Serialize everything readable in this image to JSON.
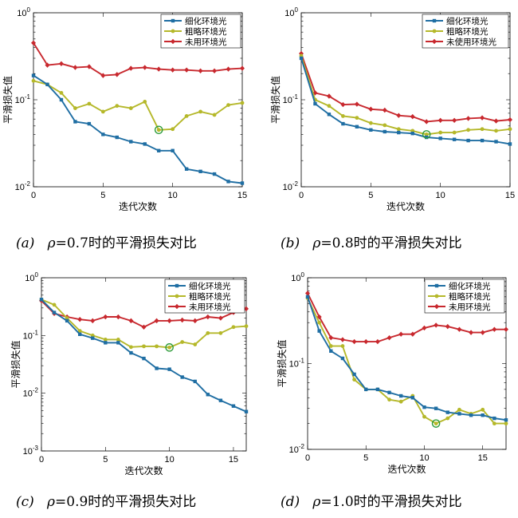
{
  "chart_data": [
    {
      "type": "line",
      "yscale": "log",
      "xlim": [
        0,
        15
      ],
      "ylim": [
        0.01,
        1
      ],
      "xticks": [
        0,
        5,
        10,
        15
      ],
      "xtick_labels": [
        "0",
        "5",
        "10",
        "15"
      ],
      "ytick_labels": [
        "10^-2",
        "10^-1",
        "10^0"
      ],
      "xlabel": "迭代次数",
      "ylabel": "平滑损失值",
      "legend_position": "top-right",
      "highlight": {
        "series": 1,
        "x": 9,
        "y": 0.045
      },
      "caption": {
        "tag": "(a)",
        "rho": "ρ",
        "rest": "=0.7时的平滑损失对比"
      },
      "series": [
        {
          "name": "细化环境光",
          "color": "#1f6ea3",
          "marker": "square",
          "x": [
            0,
            1,
            2,
            3,
            4,
            5,
            6,
            7,
            8,
            9,
            10,
            11,
            12,
            13,
            14,
            15
          ],
          "y": [
            0.19,
            0.15,
            0.1,
            0.056,
            0.053,
            0.04,
            0.037,
            0.033,
            0.031,
            0.026,
            0.026,
            0.016,
            0.015,
            0.014,
            0.0115,
            0.011
          ]
        },
        {
          "name": "粗略环境光",
          "color": "#b5b82a",
          "marker": "circle",
          "x": [
            0,
            1,
            2,
            3,
            4,
            5,
            6,
            7,
            8,
            9,
            10,
            11,
            12,
            13,
            14,
            15
          ],
          "y": [
            0.165,
            0.15,
            0.12,
            0.08,
            0.09,
            0.073,
            0.085,
            0.08,
            0.095,
            0.045,
            0.046,
            0.065,
            0.073,
            0.067,
            0.087,
            0.092
          ]
        },
        {
          "name": "未用环境光",
          "color": "#c8282e",
          "marker": "diamond",
          "x": [
            0,
            1,
            2,
            3,
            4,
            5,
            6,
            7,
            8,
            9,
            10,
            11,
            12,
            13,
            14,
            15
          ],
          "y": [
            0.45,
            0.25,
            0.26,
            0.235,
            0.24,
            0.19,
            0.195,
            0.23,
            0.235,
            0.225,
            0.22,
            0.22,
            0.215,
            0.215,
            0.225,
            0.23
          ]
        }
      ]
    },
    {
      "type": "line",
      "yscale": "log",
      "xlim": [
        0,
        15
      ],
      "ylim": [
        0.01,
        1
      ],
      "xticks": [
        0,
        5,
        10,
        15
      ],
      "xtick_labels": [
        "0",
        "5",
        "10",
        "15"
      ],
      "ytick_labels": [
        "10^-2",
        "10^-1",
        "10^0"
      ],
      "xlabel": "迭代次数",
      "ylabel": "平滑损失值",
      "legend_position": "top-right",
      "highlight": {
        "series": 1,
        "x": 9,
        "y": 0.04
      },
      "caption": {
        "tag": "(b)",
        "rho": "ρ",
        "rest": "=0.8时的平滑损失对比"
      },
      "series": [
        {
          "name": "细化环境光",
          "color": "#1f6ea3",
          "marker": "square",
          "x": [
            0,
            1,
            2,
            3,
            4,
            5,
            6,
            7,
            8,
            9,
            10,
            11,
            12,
            13,
            14,
            15
          ],
          "y": [
            0.3,
            0.09,
            0.068,
            0.053,
            0.049,
            0.045,
            0.043,
            0.042,
            0.041,
            0.037,
            0.036,
            0.035,
            0.034,
            0.034,
            0.033,
            0.031
          ]
        },
        {
          "name": "粗略环境光",
          "color": "#b5b82a",
          "marker": "circle",
          "x": [
            0,
            1,
            2,
            3,
            4,
            5,
            6,
            7,
            8,
            9,
            10,
            11,
            12,
            13,
            14,
            15
          ],
          "y": [
            0.32,
            0.1,
            0.085,
            0.065,
            0.062,
            0.054,
            0.051,
            0.046,
            0.044,
            0.04,
            0.042,
            0.042,
            0.045,
            0.046,
            0.044,
            0.046
          ]
        },
        {
          "name": "未使用环境光",
          "color": "#c8282e",
          "marker": "diamond",
          "x": [
            0,
            1,
            2,
            3,
            4,
            5,
            6,
            7,
            8,
            9,
            10,
            11,
            12,
            13,
            14,
            15
          ],
          "y": [
            0.34,
            0.12,
            0.11,
            0.088,
            0.089,
            0.078,
            0.076,
            0.066,
            0.064,
            0.056,
            0.058,
            0.058,
            0.061,
            0.062,
            0.057,
            0.059
          ]
        }
      ]
    },
    {
      "type": "line",
      "yscale": "log",
      "xlim": [
        0,
        16
      ],
      "ylim": [
        0.001,
        1
      ],
      "xticks": [
        0,
        5,
        10,
        15
      ],
      "xtick_labels": [
        "0",
        "5",
        "10",
        "15"
      ],
      "ytick_labels": [
        "10^-3",
        "10^-2",
        "10^-1",
        "10^0"
      ],
      "xlabel": "迭代次数",
      "ylabel": "平滑损失值",
      "legend_position": "top-right",
      "highlight": {
        "series": 1,
        "x": 10,
        "y": 0.062
      },
      "caption": {
        "tag": "(c)",
        "rho": "ρ",
        "rest": "=0.9时的平滑损失对比"
      },
      "series": [
        {
          "name": "细化环境光",
          "color": "#1f6ea3",
          "marker": "square",
          "x": [
            0,
            1,
            2,
            3,
            4,
            5,
            6,
            7,
            8,
            9,
            10,
            11,
            12,
            13,
            14,
            15,
            16
          ],
          "y": [
            0.42,
            0.25,
            0.18,
            0.105,
            0.09,
            0.075,
            0.075,
            0.05,
            0.04,
            0.027,
            0.026,
            0.019,
            0.016,
            0.0095,
            0.0075,
            0.006,
            0.0048
          ]
        },
        {
          "name": "粗略环境光",
          "color": "#b5b82a",
          "marker": "circle",
          "x": [
            0,
            1,
            2,
            3,
            4,
            5,
            6,
            7,
            8,
            9,
            10,
            11,
            12,
            13,
            14,
            15,
            16
          ],
          "y": [
            0.42,
            0.34,
            0.2,
            0.12,
            0.1,
            0.085,
            0.085,
            0.063,
            0.065,
            0.065,
            0.062,
            0.077,
            0.07,
            0.11,
            0.11,
            0.14,
            0.145
          ]
        },
        {
          "name": "未用环境光",
          "color": "#c8282e",
          "marker": "diamond",
          "x": [
            0,
            1,
            2,
            3,
            4,
            5,
            6,
            7,
            8,
            9,
            10,
            11,
            12,
            13,
            14,
            15,
            16
          ],
          "y": [
            0.4,
            0.24,
            0.21,
            0.19,
            0.18,
            0.21,
            0.21,
            0.18,
            0.14,
            0.18,
            0.18,
            0.185,
            0.18,
            0.21,
            0.2,
            0.25,
            0.29
          ]
        }
      ]
    },
    {
      "type": "line",
      "yscale": "log",
      "xlim": [
        0,
        17
      ],
      "ylim": [
        0.01,
        1
      ],
      "xticks": [
        0,
        5,
        10,
        15
      ],
      "xtick_labels": [
        "0",
        "5",
        "10",
        "15"
      ],
      "ytick_labels": [
        "10^-2",
        "10^-1",
        "10^0"
      ],
      "xlabel": "迭代次数",
      "ylabel": "平滑损失值",
      "legend_position": "top-right",
      "highlight": {
        "series": 1,
        "x": 11,
        "y": 0.02
      },
      "caption": {
        "tag": "(d)",
        "rho": "ρ",
        "rest": "=1.0时的平滑损失对比"
      },
      "series": [
        {
          "name": "细化环境光",
          "color": "#1f6ea3",
          "marker": "square",
          "x": [
            0,
            1,
            2,
            3,
            4,
            5,
            6,
            7,
            8,
            9,
            10,
            11,
            12,
            13,
            14,
            15,
            16,
            17
          ],
          "y": [
            0.6,
            0.24,
            0.14,
            0.115,
            0.075,
            0.05,
            0.05,
            0.046,
            0.042,
            0.04,
            0.031,
            0.03,
            0.027,
            0.026,
            0.025,
            0.025,
            0.023,
            0.022
          ]
        },
        {
          "name": "粗略环境光",
          "color": "#b5b82a",
          "marker": "circle",
          "x": [
            0,
            1,
            2,
            3,
            4,
            5,
            6,
            7,
            8,
            9,
            10,
            11,
            12,
            13,
            14,
            15,
            16,
            17
          ],
          "y": [
            0.58,
            0.3,
            0.16,
            0.16,
            0.065,
            0.05,
            0.05,
            0.038,
            0.036,
            0.042,
            0.024,
            0.02,
            0.023,
            0.029,
            0.026,
            0.029,
            0.02,
            0.02
          ]
        },
        {
          "name": "未用环境光",
          "color": "#c8282e",
          "marker": "diamond",
          "x": [
            0,
            1,
            2,
            3,
            4,
            5,
            6,
            7,
            8,
            9,
            10,
            11,
            12,
            13,
            14,
            15,
            16,
            17
          ],
          "y": [
            0.66,
            0.35,
            0.2,
            0.19,
            0.18,
            0.18,
            0.18,
            0.2,
            0.22,
            0.22,
            0.26,
            0.28,
            0.27,
            0.25,
            0.23,
            0.23,
            0.25,
            0.25
          ]
        }
      ]
    }
  ]
}
